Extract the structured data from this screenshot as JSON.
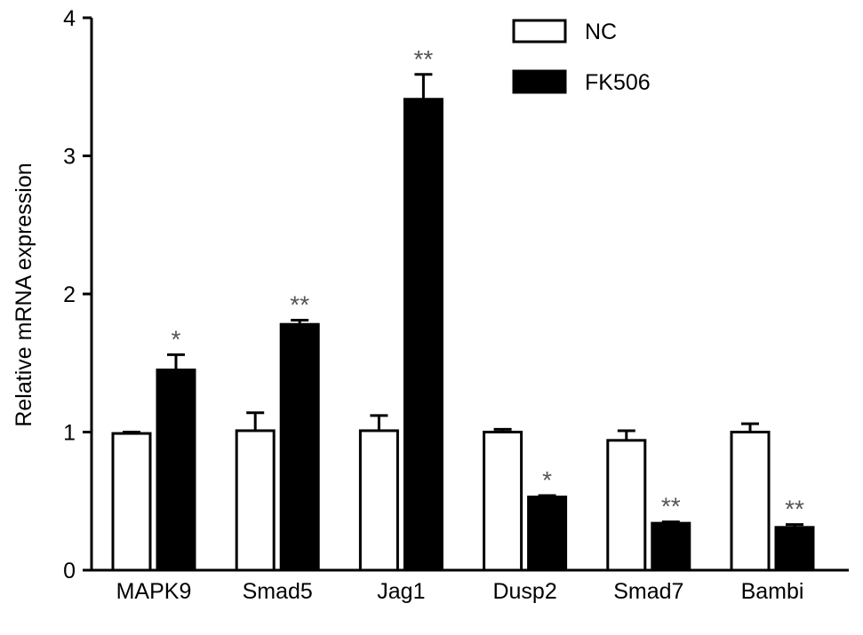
{
  "chart_data": {
    "type": "bar",
    "title": "",
    "xlabel": "",
    "ylabel": "Relative mRNA expression",
    "ylim": [
      0,
      4
    ],
    "yticks": [
      "0",
      "1",
      "2",
      "3",
      "4"
    ],
    "categories": [
      "MAPK9",
      "Smad5",
      "Jag1",
      "Dusp2",
      "Smad7",
      "Bambi"
    ],
    "series": [
      {
        "name": "NC",
        "fill": "#ffffff",
        "values": [
          0.99,
          1.01,
          1.01,
          1.0,
          0.94,
          1.0
        ],
        "errors": [
          0.01,
          0.13,
          0.11,
          0.02,
          0.07,
          0.06
        ]
      },
      {
        "name": "FK506",
        "fill": "#000000",
        "values": [
          1.45,
          1.78,
          3.41,
          0.53,
          0.34,
          0.31
        ],
        "errors": [
          0.11,
          0.03,
          0.18,
          0.01,
          0.01,
          0.02
        ]
      }
    ],
    "significance": [
      "*",
      "**",
      "**",
      "*",
      "**",
      "**"
    ],
    "legend_position": "top-right",
    "grid": false
  }
}
